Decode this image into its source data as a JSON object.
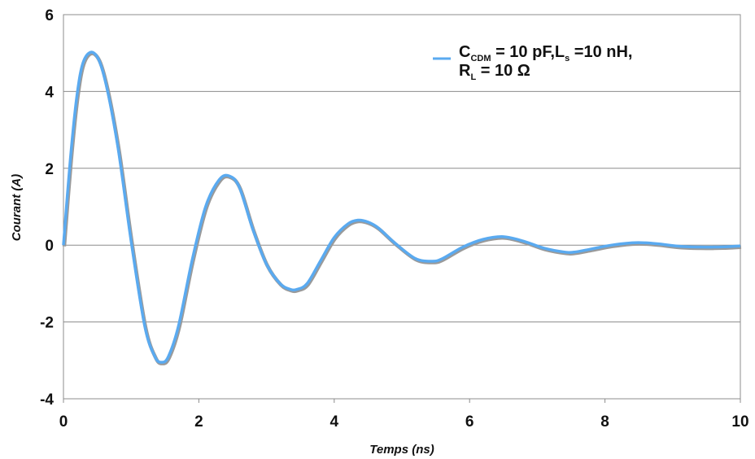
{
  "chart_data": {
    "type": "line",
    "xlabel": "Temps (ns)",
    "ylabel": "Courant (A)",
    "xlim": [
      0,
      10
    ],
    "ylim": [
      -4,
      6
    ],
    "x_ticks": [
      "0",
      "2",
      "4",
      "6",
      "8",
      "10"
    ],
    "y_ticks": [
      "-4",
      "-2",
      "0",
      "2",
      "4",
      "6"
    ],
    "grid": "horizontal",
    "legend_position": "top-right",
    "colors": {
      "series": "#5aaaf0",
      "shadow": "#9a9a9a",
      "grid": "#8c8c8c",
      "frame": "#8c8c8c"
    },
    "legend": {
      "c_main": "C",
      "c_sub": "CDM",
      "c_rest": " = 10 pF,L",
      "l_sub": "s",
      "l_rest": " =10 nH,",
      "r_main": "R",
      "r_sub": "L",
      "r_rest": " = 10 Ω"
    },
    "series": [
      {
        "x": [
          0.0,
          0.1,
          0.2,
          0.3,
          0.45,
          0.6,
          0.8,
          1.0,
          1.2,
          1.35,
          1.45,
          1.55,
          1.7,
          1.9,
          2.1,
          2.3,
          2.45,
          2.6,
          2.8,
          3.0,
          3.2,
          3.35,
          3.45,
          3.6,
          3.8,
          4.0,
          4.2,
          4.35,
          4.5,
          4.65,
          4.9,
          5.2,
          5.45,
          5.6,
          5.9,
          6.2,
          6.5,
          6.8,
          7.1,
          7.4,
          7.55,
          7.8,
          8.1,
          8.4,
          8.6,
          8.8,
          9.1,
          9.4,
          9.6,
          9.8,
          10.0
        ],
        "y": [
          0.0,
          2.2,
          3.9,
          4.8,
          5.0,
          4.4,
          2.6,
          0.1,
          -2.1,
          -2.9,
          -3.05,
          -2.9,
          -2.1,
          -0.4,
          1.0,
          1.7,
          1.8,
          1.5,
          0.4,
          -0.5,
          -1.0,
          -1.15,
          -1.15,
          -1.0,
          -0.4,
          0.2,
          0.55,
          0.65,
          0.6,
          0.45,
          0.05,
          -0.35,
          -0.42,
          -0.35,
          -0.05,
          0.15,
          0.22,
          0.1,
          -0.08,
          -0.18,
          -0.18,
          -0.1,
          0.0,
          0.06,
          0.06,
          0.03,
          -0.03,
          -0.05,
          -0.05,
          -0.04,
          -0.02
        ]
      }
    ]
  }
}
